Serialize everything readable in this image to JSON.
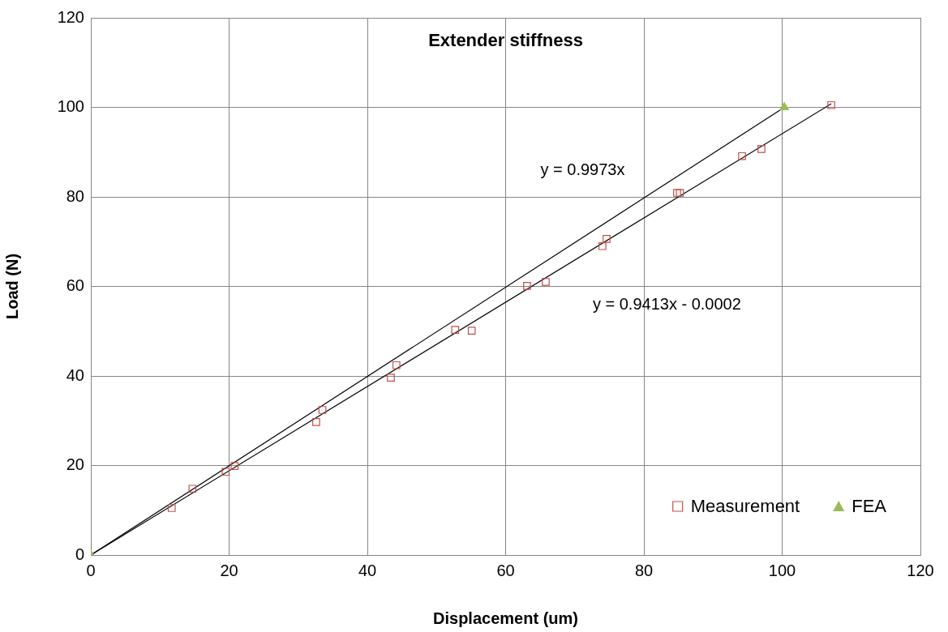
{
  "chart_data": {
    "type": "scatter",
    "title": "Extender stiffness",
    "xlabel": "Displacement (um)",
    "ylabel": "Load (N)",
    "series": [
      {
        "name": "Measurement",
        "color": "#c0504d",
        "marker": "square",
        "x": [
          11.7,
          14.7,
          19.5,
          20.8,
          32.6,
          33.5,
          43.4,
          44.2,
          52.7,
          55.1,
          63.1,
          65.8,
          74.0,
          74.6,
          84.8,
          85.2,
          94.2,
          97.0,
          107.1
        ],
        "values": [
          10.5,
          14.8,
          18.6,
          19.9,
          29.7,
          32.4,
          39.6,
          42.4,
          50.3,
          50.1,
          60.1,
          61.0,
          69.0,
          70.6,
          80.9,
          80.9,
          89.1,
          90.7,
          100.5
        ]
      },
      {
        "name": "FEA",
        "color": "#9bbb59",
        "marker": "triangle",
        "x": [
          0,
          100.3
        ],
        "values": [
          0,
          100
        ]
      },
      {
        "type": "line",
        "color": "#000000",
        "marker": "none",
        "x": [
          0,
          100.3
        ],
        "values": [
          0,
          100
        ]
      },
      {
        "type": "line",
        "color": "#000000",
        "marker": "none",
        "x": [
          0,
          107.1
        ],
        "values": [
          0,
          100.8
        ]
      }
    ],
    "annotations": [
      "y = 0.9973x",
      "y = 0.9413x - 0.0002"
    ],
    "xlim": [
      0,
      120
    ],
    "xticks": [
      0,
      20,
      40,
      60,
      80,
      100,
      120
    ],
    "ylim": [
      0,
      120
    ],
    "yticks": [
      0,
      20,
      40,
      60,
      80,
      100,
      120
    ],
    "grid": true,
    "legend": "bottom right"
  }
}
